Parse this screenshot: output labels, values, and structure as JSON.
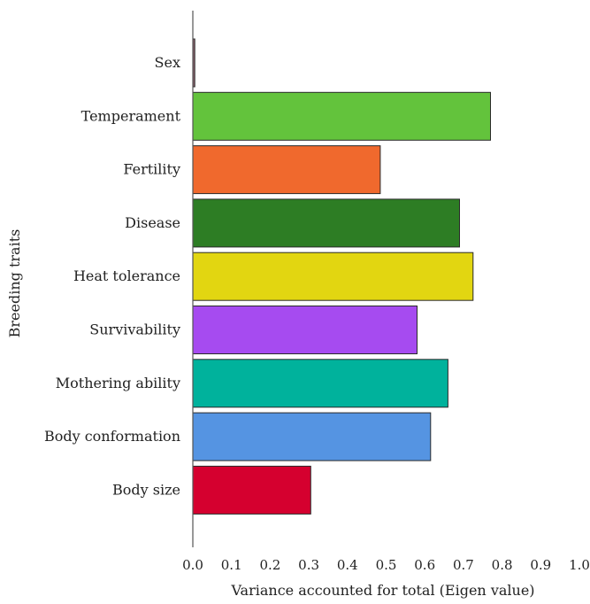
{
  "chart_data": {
    "type": "bar",
    "orientation": "horizontal",
    "title": "",
    "xlabel": "Variance accounted for total (Eigen value)",
    "ylabel": "Breeding traits",
    "xlim": [
      0,
      1.0
    ],
    "xticks": [
      "0.0",
      "0.1",
      "0.2",
      "0.3",
      "0.4",
      "0.5",
      "0.6",
      "0.7",
      "0.8",
      "0.9",
      "1.0"
    ],
    "grid": false,
    "legend": "none",
    "categories": [
      "Sex",
      "Temperament",
      "Fertility",
      "Disease",
      "Heat tolerance",
      "Survivability",
      "Mothering ability",
      "Body conformation",
      "Body size"
    ],
    "values": [
      0.005,
      0.77,
      0.485,
      0.69,
      0.725,
      0.58,
      0.66,
      0.615,
      0.305
    ],
    "colors": [
      "#8b5e6b",
      "#63c33c",
      "#f0692d",
      "#2d7d24",
      "#e2d611",
      "#a64bf0",
      "#00b29c",
      "#5594e2",
      "#d5002f"
    ]
  }
}
